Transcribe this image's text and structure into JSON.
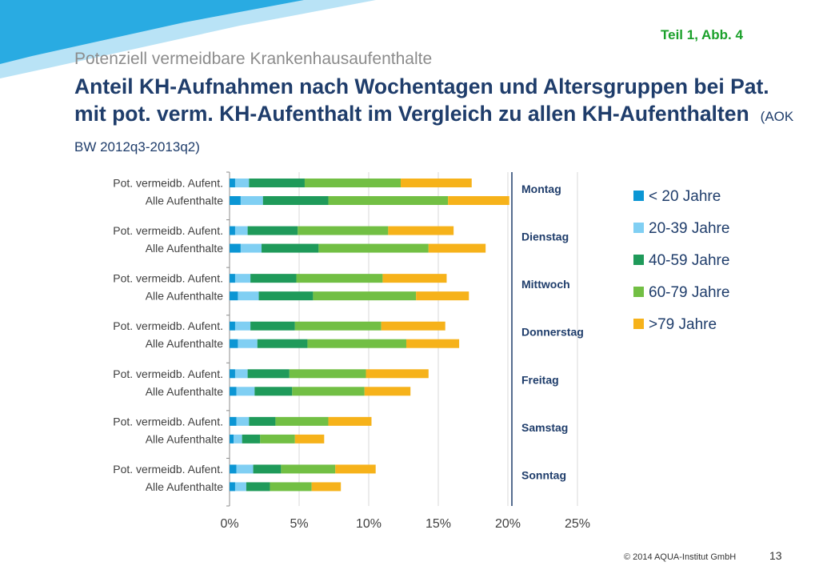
{
  "header": {
    "tag": "Teil  1, Abb. 4",
    "supertitle": "Potenziell vermeidbare Krankenhausaufenthalte",
    "title": "Anteil KH-Aufnahmen nach Wochentagen und Altersgruppen bei Pat. mit pot. verm. KH-Aufenthalt im Vergleich zu allen KH-Aufenthalten",
    "source": "(AOK BW 2012q3-2013q2)"
  },
  "footer": {
    "copyright": "© 2014 AQUA-Institut GmbH",
    "page": "13"
  },
  "colors": {
    "accent_blue": "#29abe2",
    "light_blue": "#bfe6f6",
    "title": "#1f3d6b",
    "tag_green": "#1aa02a"
  },
  "chart_data": {
    "type": "bar",
    "orientation": "horizontal",
    "stacked": true,
    "row_labels": [
      "Pot. vermeidb. Aufent.",
      "Alle Aufenthalte"
    ],
    "groups": [
      "Montag",
      "Dienstag",
      "Mittwoch",
      "Donnerstag",
      "Freitag",
      "Samstag",
      "Sonntag"
    ],
    "series": [
      {
        "name": "< 20 Jahre",
        "color": "#0b96d4",
        "values": [
          [
            0.4,
            0.8
          ],
          [
            0.4,
            0.8
          ],
          [
            0.4,
            0.6
          ],
          [
            0.4,
            0.6
          ],
          [
            0.4,
            0.5
          ],
          [
            0.5,
            0.3
          ],
          [
            0.5,
            0.4
          ]
        ]
      },
      {
        "name": "20-39 Jahre",
        "color": "#80cff3",
        "values": [
          [
            1.0,
            1.6
          ],
          [
            0.9,
            1.5
          ],
          [
            1.1,
            1.5
          ],
          [
            1.1,
            1.4
          ],
          [
            0.9,
            1.3
          ],
          [
            0.9,
            0.6
          ],
          [
            1.2,
            0.8
          ]
        ]
      },
      {
        "name": "40-59 Jahre",
        "color": "#1f9a5a",
        "values": [
          [
            4.0,
            4.7
          ],
          [
            3.6,
            4.1
          ],
          [
            3.3,
            3.9
          ],
          [
            3.2,
            3.6
          ],
          [
            3.0,
            2.7
          ],
          [
            1.9,
            1.3
          ],
          [
            2.0,
            1.7
          ]
        ]
      },
      {
        "name": "60-79 Jahre",
        "color": "#72bf44",
        "values": [
          [
            6.9,
            8.6
          ],
          [
            6.5,
            7.9
          ],
          [
            6.2,
            7.4
          ],
          [
            6.2,
            7.1
          ],
          [
            5.5,
            5.2
          ],
          [
            3.8,
            2.5
          ],
          [
            3.9,
            3.0
          ]
        ]
      },
      {
        "name": ">79 Jahre",
        "color": "#f6b21a",
        "values": [
          [
            5.1,
            4.4
          ],
          [
            4.7,
            4.1
          ],
          [
            4.6,
            3.8
          ],
          [
            4.6,
            3.8
          ],
          [
            4.5,
            3.3
          ],
          [
            3.1,
            2.1
          ],
          [
            2.9,
            2.1
          ]
        ]
      }
    ],
    "x_ticks": [
      "0%",
      "5%",
      "10%",
      "15%",
      "20%",
      "25%"
    ],
    "xlim": [
      0,
      25
    ],
    "xlabel": "",
    "ylabel": "",
    "grid": true,
    "legend_position": "right"
  }
}
